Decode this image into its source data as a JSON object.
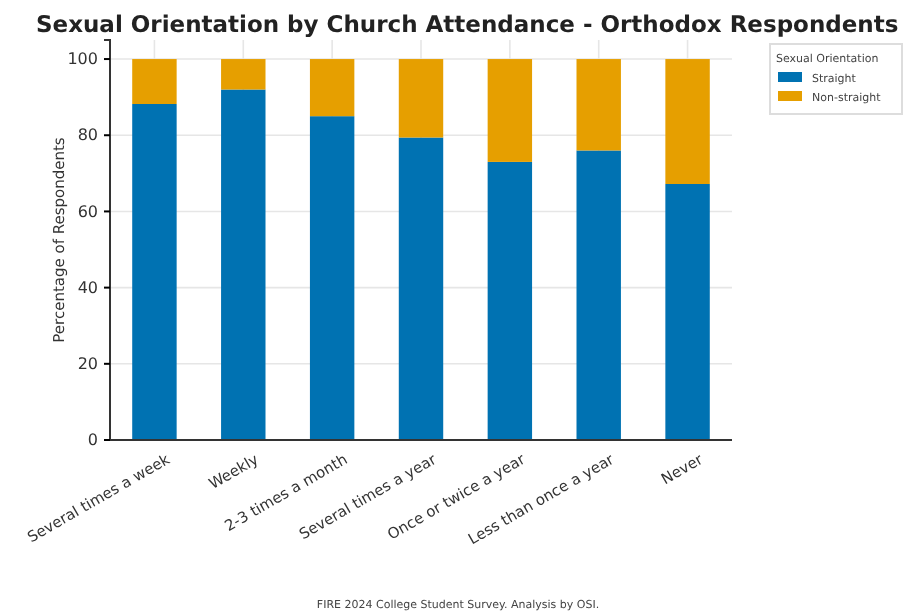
{
  "chart_data": {
    "type": "bar",
    "title": "Sexual Orientation by Church Attendance - Orthodox Respondents",
    "ylabel": "Percentage of Respondents",
    "legend_title": "Sexual Orientation",
    "categories": [
      "Several times a week",
      "Weekly",
      "2-3 times a month",
      "Several times a year",
      "Once or twice a year",
      "Less than once a year",
      "Never"
    ],
    "series": [
      {
        "name": "Straight",
        "color": "#0072b2",
        "values": [
          88.2,
          92,
          85,
          79.4,
          73,
          76,
          67.2
        ]
      },
      {
        "name": "Non-straight",
        "color": "#e69f00",
        "values": [
          11.8,
          8,
          15,
          20.6,
          27,
          24,
          32.8
        ]
      }
    ],
    "stacked": true,
    "ylim": [
      0,
      105
    ],
    "yticks": [
      0,
      20,
      40,
      60,
      80,
      100
    ],
    "grid": true,
    "legend": "top right",
    "annotations": [
      "FIRE 2024 College Student Survey. Analysis by OSI."
    ]
  }
}
